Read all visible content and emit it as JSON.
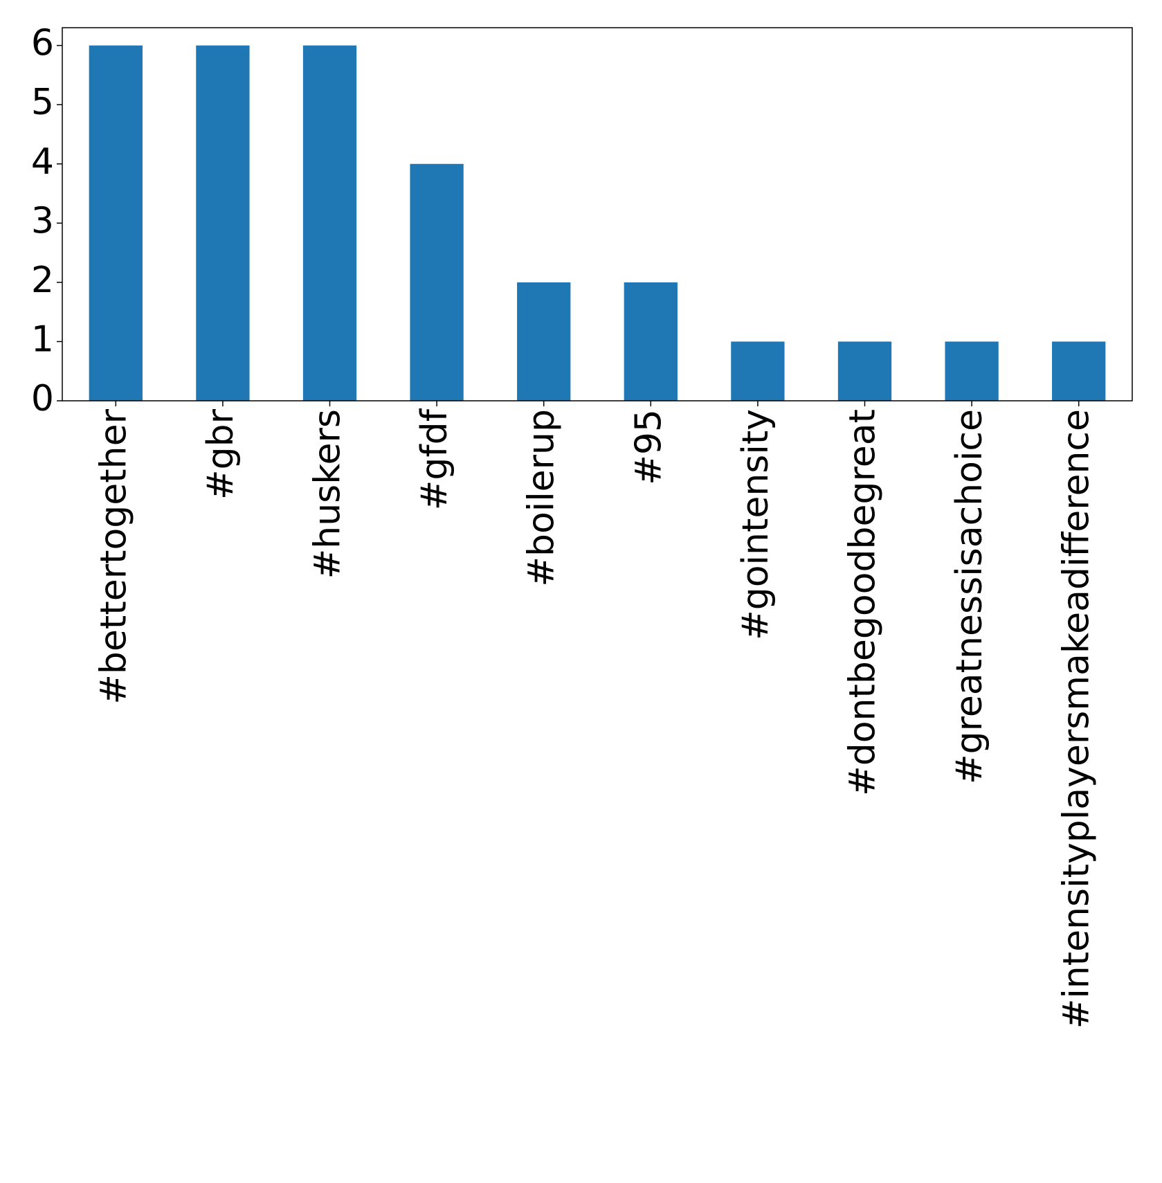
{
  "chart_data": {
    "type": "bar",
    "categories": [
      "#bettertogether",
      "#gbr",
      "#huskers",
      "#gfdf",
      "#boilerup",
      "#95",
      "#gointensity",
      "#dontbegoodbegreat",
      "#greatnessisachoice",
      "#intensityplayersmakeadifference"
    ],
    "values": [
      6,
      6,
      6,
      4,
      2,
      2,
      1,
      1,
      1,
      1
    ],
    "color": "#1f77b4",
    "ylim": [
      0,
      6.3
    ],
    "yticks": [
      0,
      1,
      2,
      3,
      4,
      5,
      6
    ],
    "grid": false
  }
}
